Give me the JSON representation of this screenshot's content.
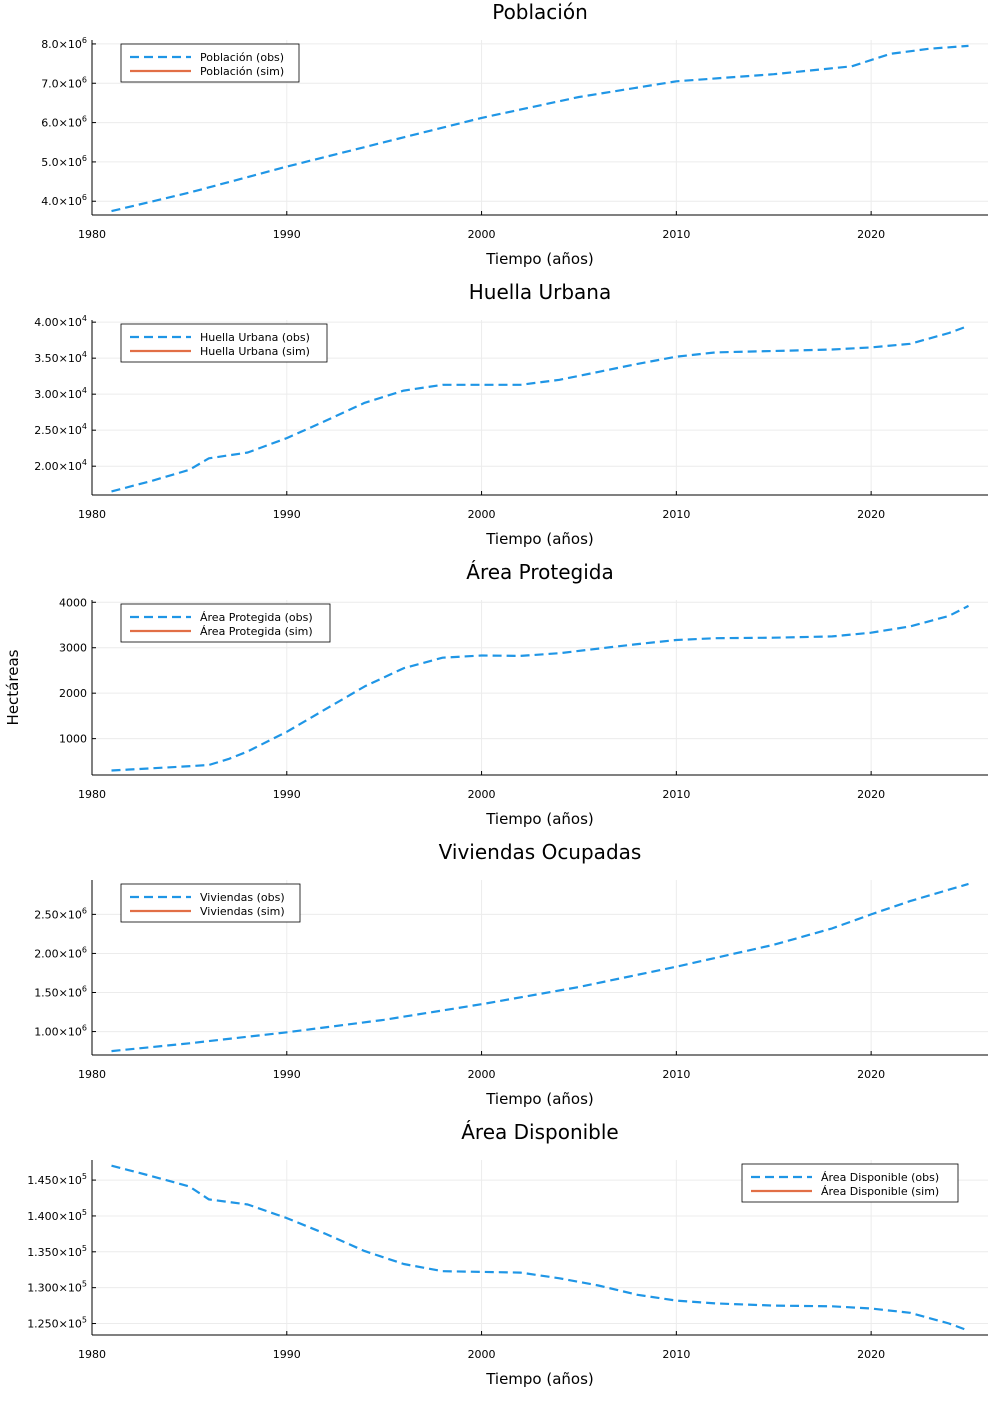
{
  "colors": {
    "observed": "#1f96e6",
    "simulated": "#e26f46",
    "grid": "#ececec",
    "axis": "#000000"
  },
  "chart_data": [
    {
      "type": "line",
      "title": "Población",
      "xlabel": "Tiempo (años)",
      "ylabel": "",
      "xlim": [
        1980,
        2026
      ],
      "ylim": [
        3650000,
        8100000
      ],
      "x_ticks": [
        1980,
        1990,
        2000,
        2010,
        2020
      ],
      "x_tick_labels": [
        "1980",
        "1990",
        "2000",
        "2010",
        "2020"
      ],
      "y_ticks": [
        4000000,
        5000000,
        6000000,
        7000000,
        8000000
      ],
      "y_tick_labels": [
        {
          "m": "4.0×10",
          "e": "6"
        },
        {
          "m": "5.0×10",
          "e": "6"
        },
        {
          "m": "6.0×10",
          "e": "6"
        },
        {
          "m": "7.0×10",
          "e": "6"
        },
        {
          "m": "8.0×10",
          "e": "6"
        }
      ],
      "grid": true,
      "legend_position": "top-left",
      "series": [
        {
          "name": "Población (obs)",
          "style": "dashed",
          "x": [
            1981,
            1985,
            1990,
            1995,
            2000,
            2005,
            2010,
            2015,
            2019,
            2021,
            2023,
            2025
          ],
          "y": [
            3750000,
            4220000,
            4880000,
            5500000,
            6120000,
            6650000,
            7050000,
            7230000,
            7430000,
            7750000,
            7880000,
            7950000
          ]
        },
        {
          "name": "Población (sim)",
          "style": "solid",
          "x": [],
          "y": []
        }
      ]
    },
    {
      "type": "line",
      "title": "Huella Urbana",
      "xlabel": "Tiempo (años)",
      "ylabel": "",
      "xlim": [
        1980,
        2026
      ],
      "ylim": [
        16000,
        40300
      ],
      "x_ticks": [
        1980,
        1990,
        2000,
        2010,
        2020
      ],
      "x_tick_labels": [
        "1980",
        "1990",
        "2000",
        "2010",
        "2020"
      ],
      "y_ticks": [
        20000,
        25000,
        30000,
        35000,
        40000
      ],
      "y_tick_labels": [
        {
          "m": "2.00×10",
          "e": "4"
        },
        {
          "m": "2.50×10",
          "e": "4"
        },
        {
          "m": "3.00×10",
          "e": "4"
        },
        {
          "m": "3.50×10",
          "e": "4"
        },
        {
          "m": "4.00×10",
          "e": "4"
        }
      ],
      "grid": true,
      "legend_position": "top-left",
      "series": [
        {
          "name": "Huella Urbana (obs)",
          "style": "dashed",
          "x": [
            1981,
            1983,
            1985,
            1986,
            1988,
            1990,
            1992,
            1994,
            1996,
            1998,
            2000,
            2002,
            2004,
            2006,
            2008,
            2010,
            2012,
            2015,
            2018,
            2020,
            2022,
            2024,
            2025
          ],
          "y": [
            16500,
            17900,
            19500,
            21100,
            21900,
            23900,
            26300,
            28800,
            30500,
            31300,
            31300,
            31300,
            32000,
            33100,
            34200,
            35200,
            35800,
            36000,
            36200,
            36500,
            37000,
            38500,
            39500
          ]
        },
        {
          "name": "Huella Urbana (sim)",
          "style": "solid",
          "x": [],
          "y": []
        }
      ]
    },
    {
      "type": "line",
      "title": "Área Protegida",
      "xlabel": "Tiempo (años)",
      "ylabel": "Hectáreas",
      "xlim": [
        1980,
        2026
      ],
      "ylim": [
        200,
        4050
      ],
      "x_ticks": [
        1980,
        1990,
        2000,
        2010,
        2020
      ],
      "x_tick_labels": [
        "1980",
        "1990",
        "2000",
        "2010",
        "2020"
      ],
      "y_ticks": [
        1000,
        2000,
        3000,
        4000
      ],
      "y_tick_labels": [
        {
          "m": "1000",
          "e": ""
        },
        {
          "m": "2000",
          "e": ""
        },
        {
          "m": "3000",
          "e": ""
        },
        {
          "m": "4000",
          "e": ""
        }
      ],
      "grid": true,
      "legend_position": "top-left",
      "series": [
        {
          "name": "Área Protegida (obs)",
          "style": "dashed",
          "x": [
            1981,
            1984,
            1986,
            1987,
            1988,
            1990,
            1992,
            1994,
            1996,
            1998,
            2000,
            2002,
            2004,
            2006,
            2008,
            2010,
            2012,
            2015,
            2018,
            2020,
            2022,
            2024,
            2025
          ],
          "y": [
            300,
            370,
            420,
            550,
            720,
            1150,
            1650,
            2150,
            2550,
            2780,
            2830,
            2820,
            2880,
            2980,
            3080,
            3170,
            3210,
            3220,
            3250,
            3330,
            3470,
            3700,
            3920
          ]
        },
        {
          "name": "Área Protegida (sim)",
          "style": "solid",
          "x": [],
          "y": []
        }
      ]
    },
    {
      "type": "line",
      "title": "Viviendas Ocupadas",
      "xlabel": "Tiempo (años)",
      "ylabel": "",
      "xlim": [
        1980,
        2026
      ],
      "ylim": [
        700000,
        2940000
      ],
      "x_ticks": [
        1980,
        1990,
        2000,
        2010,
        2020
      ],
      "x_tick_labels": [
        "1980",
        "1990",
        "2000",
        "2010",
        "2020"
      ],
      "y_ticks": [
        1000000,
        1500000,
        2000000,
        2500000
      ],
      "y_tick_labels": [
        {
          "m": "1.00×10",
          "e": "6"
        },
        {
          "m": "1.50×10",
          "e": "6"
        },
        {
          "m": "2.00×10",
          "e": "6"
        },
        {
          "m": "2.50×10",
          "e": "6"
        }
      ],
      "grid": true,
      "legend_position": "top-left",
      "series": [
        {
          "name": "Viviendas (obs)",
          "style": "dashed",
          "x": [
            1981,
            1985,
            1990,
            1995,
            2000,
            2005,
            2010,
            2015,
            2018,
            2020,
            2022,
            2025
          ],
          "y": [
            750000,
            850000,
            990000,
            1150000,
            1350000,
            1570000,
            1830000,
            2110000,
            2320000,
            2500000,
            2670000,
            2890000
          ]
        },
        {
          "name": "Viviendas (sim)",
          "style": "solid",
          "x": [],
          "y": []
        }
      ]
    },
    {
      "type": "line",
      "title": "Área Disponible",
      "xlabel": "Tiempo (años)",
      "ylabel": "",
      "xlim": [
        1980,
        2026
      ],
      "ylim": [
        123400,
        147800
      ],
      "x_ticks": [
        1980,
        1990,
        2000,
        2010,
        2020
      ],
      "x_tick_labels": [
        "1980",
        "1990",
        "2000",
        "2010",
        "2020"
      ],
      "y_ticks": [
        125000,
        130000,
        135000,
        140000,
        145000
      ],
      "y_tick_labels": [
        {
          "m": "1.250×10",
          "e": "5"
        },
        {
          "m": "1.300×10",
          "e": "5"
        },
        {
          "m": "1.350×10",
          "e": "5"
        },
        {
          "m": "1.400×10",
          "e": "5"
        },
        {
          "m": "1.450×10",
          "e": "5"
        }
      ],
      "grid": true,
      "legend_position": "top-right",
      "series": [
        {
          "name": "Área Disponible (obs)",
          "style": "dashed",
          "x": [
            1981,
            1983,
            1985,
            1986,
            1988,
            1990,
            1992,
            1994,
            1996,
            1998,
            2000,
            2002,
            2004,
            2006,
            2008,
            2010,
            2012,
            2015,
            2018,
            2020,
            2022,
            2024,
            2025
          ],
          "y": [
            147000,
            145600,
            144100,
            142300,
            141600,
            139700,
            137500,
            135100,
            133300,
            132300,
            132200,
            132100,
            131300,
            130300,
            129000,
            128200,
            127800,
            127500,
            127400,
            127100,
            126500,
            125000,
            124000
          ]
        },
        {
          "name": "Área Disponible (sim)",
          "style": "solid",
          "x": [],
          "y": []
        }
      ]
    }
  ]
}
